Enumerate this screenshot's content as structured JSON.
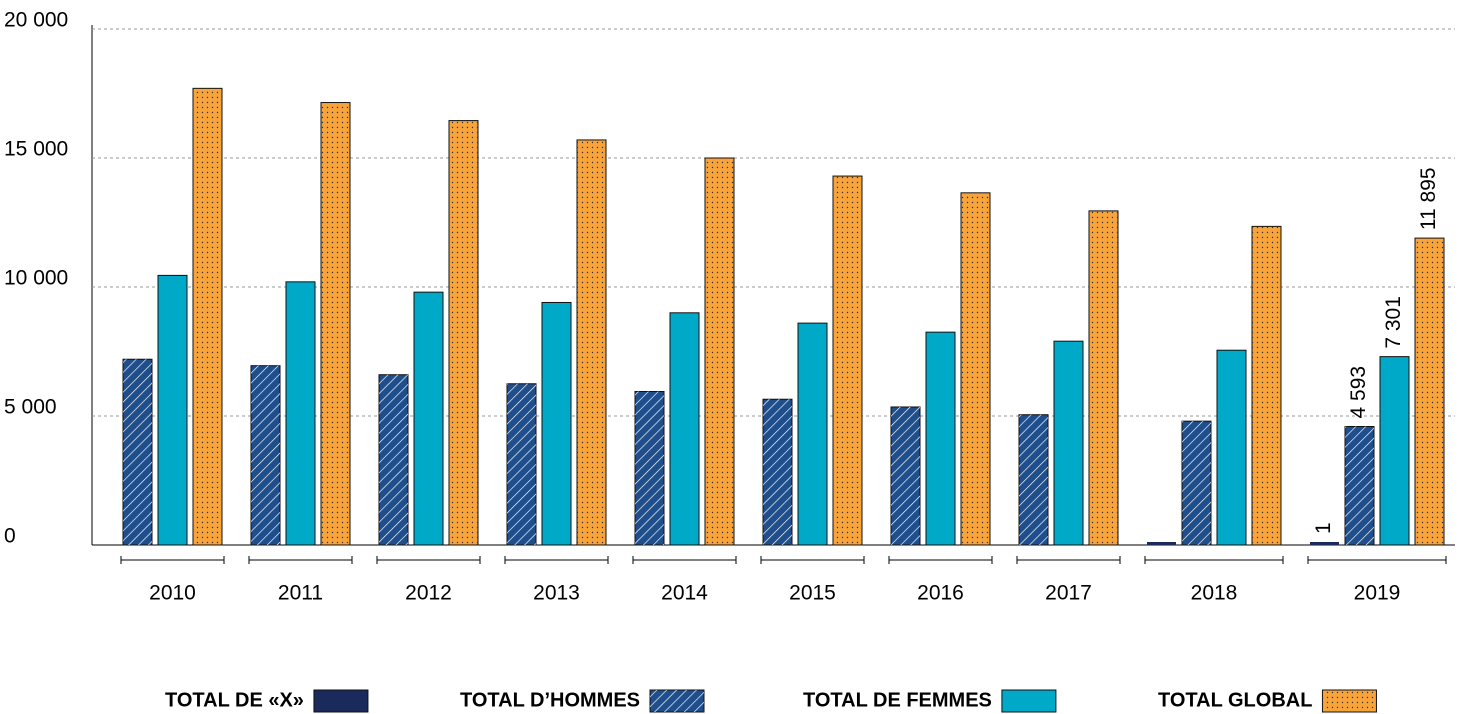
{
  "chart_data": {
    "type": "bar",
    "categories": [
      "2010",
      "2011",
      "2012",
      "2013",
      "2014",
      "2015",
      "2016",
      "2017",
      "2018",
      "2019"
    ],
    "series": [
      {
        "name": "TOTAL DE «X»",
        "color": "#1b2a5c",
        "pattern": "solid",
        "values": [
          null,
          null,
          null,
          null,
          null,
          null,
          null,
          null,
          1,
          1
        ],
        "value_labels": [
          null,
          null,
          null,
          null,
          null,
          null,
          null,
          null,
          null,
          "1"
        ]
      },
      {
        "name": "TOTAL D’HOMMES",
        "color": "#1f4e8c",
        "pattern": "hatch",
        "values": [
          7200,
          6950,
          6600,
          6250,
          5950,
          5650,
          5350,
          5050,
          4800,
          4593
        ],
        "value_labels": [
          null,
          null,
          null,
          null,
          null,
          null,
          null,
          null,
          null,
          "4 593"
        ]
      },
      {
        "name": "TOTAL DE FEMMES",
        "color": "#00a9c8",
        "pattern": "solid",
        "values": [
          10450,
          10200,
          9800,
          9400,
          9000,
          8600,
          8250,
          7900,
          7550,
          7301
        ],
        "value_labels": [
          null,
          null,
          null,
          null,
          null,
          null,
          null,
          null,
          null,
          "7 301"
        ]
      },
      {
        "name": "TOTAL GLOBAL",
        "color": "#f9a43a",
        "pattern": "dots",
        "values": [
          17700,
          17150,
          16450,
          15700,
          15000,
          14300,
          13650,
          12950,
          12350,
          11895
        ],
        "value_labels": [
          null,
          null,
          null,
          null,
          null,
          null,
          null,
          null,
          null,
          "11 895"
        ]
      }
    ],
    "ylim": [
      0,
      20000
    ],
    "yticks": [
      {
        "value": 0,
        "label": "0"
      },
      {
        "value": 5000,
        "label": "5 000"
      },
      {
        "value": 10000,
        "label": "10 000"
      },
      {
        "value": 15000,
        "label": "15 000"
      },
      {
        "value": 20000,
        "label": "20 000"
      }
    ],
    "grid": true
  }
}
